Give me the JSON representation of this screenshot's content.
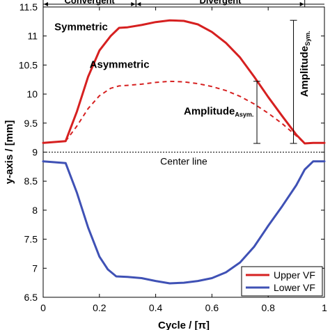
{
  "chart_data": {
    "type": "line",
    "xlabel": "Cycle / [π]",
    "ylabel": "y-axis / [mm]",
    "xlim": [
      0,
      1
    ],
    "ylim": [
      6.5,
      11.5
    ],
    "x_ticks": [
      0,
      0.2,
      0.4,
      0.6,
      0.8,
      1
    ],
    "x_tick_labels": [
      "0",
      "0.2",
      "0.4",
      "0.6",
      "0.8",
      "1"
    ],
    "y_ticks": [
      6.5,
      7,
      7.5,
      8,
      8.5,
      9,
      9.5,
      10,
      10.5,
      11,
      11.5
    ],
    "y_tick_labels": [
      "6.5",
      "7",
      "7.5",
      "8",
      "8.5",
      "9",
      "9.5",
      "10",
      "10.5",
      "11",
      "11.5"
    ],
    "grid": false,
    "legend_position": "bottom-right",
    "center_line": {
      "y": 9,
      "label": "Center line"
    },
    "phases": [
      {
        "label": "Convergent",
        "x_start": 0,
        "x_end": 0.33
      },
      {
        "label": "Divergent",
        "x_start": 0.33,
        "x_end": 0.93
      }
    ],
    "series": [
      {
        "name": "Upper VF",
        "color": "#d62020",
        "style": "solid",
        "x": [
          0,
          0.08,
          0.12,
          0.16,
          0.2,
          0.24,
          0.27,
          0.3,
          0.35,
          0.4,
          0.45,
          0.5,
          0.55,
          0.6,
          0.65,
          0.7,
          0.75,
          0.8,
          0.85,
          0.9,
          0.93,
          0.96,
          1.0
        ],
        "values": [
          9.16,
          9.19,
          9.7,
          10.3,
          10.75,
          11.0,
          11.14,
          11.15,
          11.19,
          11.24,
          11.27,
          11.26,
          11.2,
          11.07,
          10.88,
          10.63,
          10.3,
          9.95,
          9.62,
          9.3,
          9.15,
          9.16,
          9.16
        ]
      },
      {
        "name": "",
        "color": "#d62020",
        "style": "dashed",
        "x": [
          0.08,
          0.12,
          0.16,
          0.2,
          0.24,
          0.27,
          0.3,
          0.35,
          0.4,
          0.45,
          0.5,
          0.55,
          0.6,
          0.65,
          0.7,
          0.75,
          0.8,
          0.85,
          0.9,
          0.93
        ],
        "values": [
          9.19,
          9.45,
          9.75,
          9.97,
          10.1,
          10.14,
          10.15,
          10.17,
          10.2,
          10.22,
          10.21,
          10.18,
          10.13,
          10.06,
          9.96,
          9.83,
          9.67,
          9.49,
          9.28,
          9.15
        ]
      },
      {
        "name": "Lower VF",
        "color": "#3f51b5",
        "style": "solid",
        "x": [
          0,
          0.08,
          0.12,
          0.16,
          0.2,
          0.23,
          0.26,
          0.3,
          0.35,
          0.4,
          0.45,
          0.5,
          0.55,
          0.6,
          0.65,
          0.7,
          0.75,
          0.8,
          0.85,
          0.9,
          0.93,
          0.96,
          1.0
        ],
        "values": [
          8.84,
          8.81,
          8.3,
          7.7,
          7.2,
          6.98,
          6.86,
          6.85,
          6.83,
          6.78,
          6.74,
          6.75,
          6.78,
          6.83,
          6.93,
          7.1,
          7.37,
          7.73,
          8.07,
          8.43,
          8.7,
          8.84,
          8.84
        ]
      }
    ],
    "annotations": {
      "symmetric": "Symmetric",
      "asymmetric": "Asymmetric",
      "amp_asym_main": "Amplitude",
      "amp_asym_sub": "Asym.",
      "amp_sym_main": "Amplitude",
      "amp_sym_sub": "Sym.",
      "amp_asym_range": [
        9.15,
        10.22
      ],
      "amp_sym_range": [
        9.15,
        11.27
      ]
    },
    "legend": [
      "Upper VF",
      "Lower VF"
    ]
  }
}
